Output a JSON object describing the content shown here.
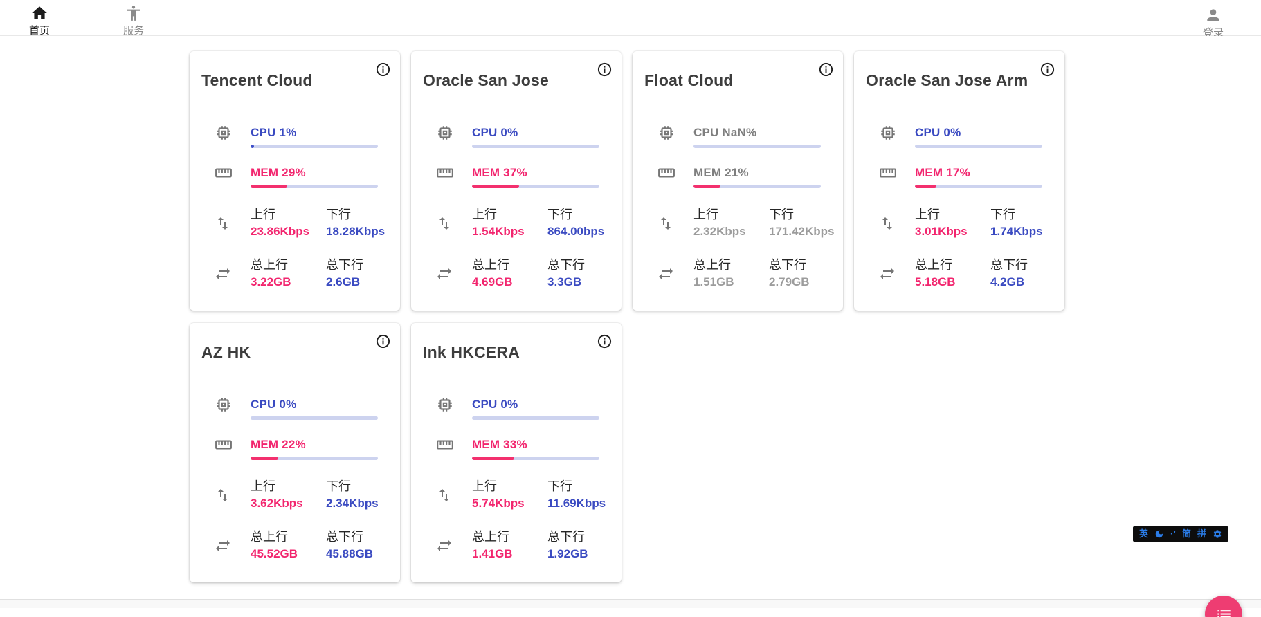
{
  "nav": {
    "home": {
      "label": "首页"
    },
    "services": {
      "label": "服务"
    },
    "login": {
      "label": "登录"
    }
  },
  "labels": {
    "up": "上行",
    "down": "下行",
    "total_up": "总上行",
    "total_down": "总下行"
  },
  "servers": [
    {
      "name": "Tencent Cloud",
      "cpu_label": "CPU 1%",
      "cpu_pct": 1,
      "mem_label": "MEM 29%",
      "mem_pct": 29,
      "up": "23.86Kbps",
      "down": "18.28Kbps",
      "total_up": "3.22GB",
      "total_down": "2.6GB",
      "offline": false
    },
    {
      "name": "Oracle San Jose",
      "cpu_label": "CPU 0%",
      "cpu_pct": 0,
      "mem_label": "MEM 37%",
      "mem_pct": 37,
      "up": "1.54Kbps",
      "down": "864.00bps",
      "total_up": "4.69GB",
      "total_down": "3.3GB",
      "offline": false
    },
    {
      "name": "Float Cloud",
      "cpu_label": "CPU NaN%",
      "cpu_pct": 0,
      "mem_label": "MEM 21%",
      "mem_pct": 21,
      "up": "2.32Kbps",
      "down": "171.42Kbps",
      "total_up": "1.51GB",
      "total_down": "2.79GB",
      "offline": true
    },
    {
      "name": "Oracle San Jose Arm",
      "cpu_label": "CPU 0%",
      "cpu_pct": 0,
      "mem_label": "MEM 17%",
      "mem_pct": 17,
      "up": "3.01Kbps",
      "down": "1.74Kbps",
      "total_up": "5.18GB",
      "total_down": "4.2GB",
      "offline": false
    },
    {
      "name": "AZ HK",
      "cpu_label": "CPU 0%",
      "cpu_pct": 0,
      "mem_label": "MEM 22%",
      "mem_pct": 22,
      "up": "3.62Kbps",
      "down": "2.34Kbps",
      "total_up": "45.52GB",
      "total_down": "45.88GB",
      "offline": false
    },
    {
      "name": "Ink HKCERA",
      "cpu_label": "CPU 0%",
      "cpu_pct": 0,
      "mem_label": "MEM 33%",
      "mem_pct": 33,
      "up": "5.74Kbps",
      "down": "11.69Kbps",
      "total_up": "1.41GB",
      "total_down": "1.92GB",
      "offline": false
    }
  ],
  "ime": {
    "english": "英",
    "punctuation": "·’",
    "simplified": "简",
    "pinyin": "拼"
  },
  "colors": {
    "accent_blue": "#3a4ac1",
    "accent_pink": "#f2256e",
    "bar_track": "#cdd3ef",
    "fab_pink": "#ee3d72",
    "ime_blue": "#2b7de9"
  }
}
